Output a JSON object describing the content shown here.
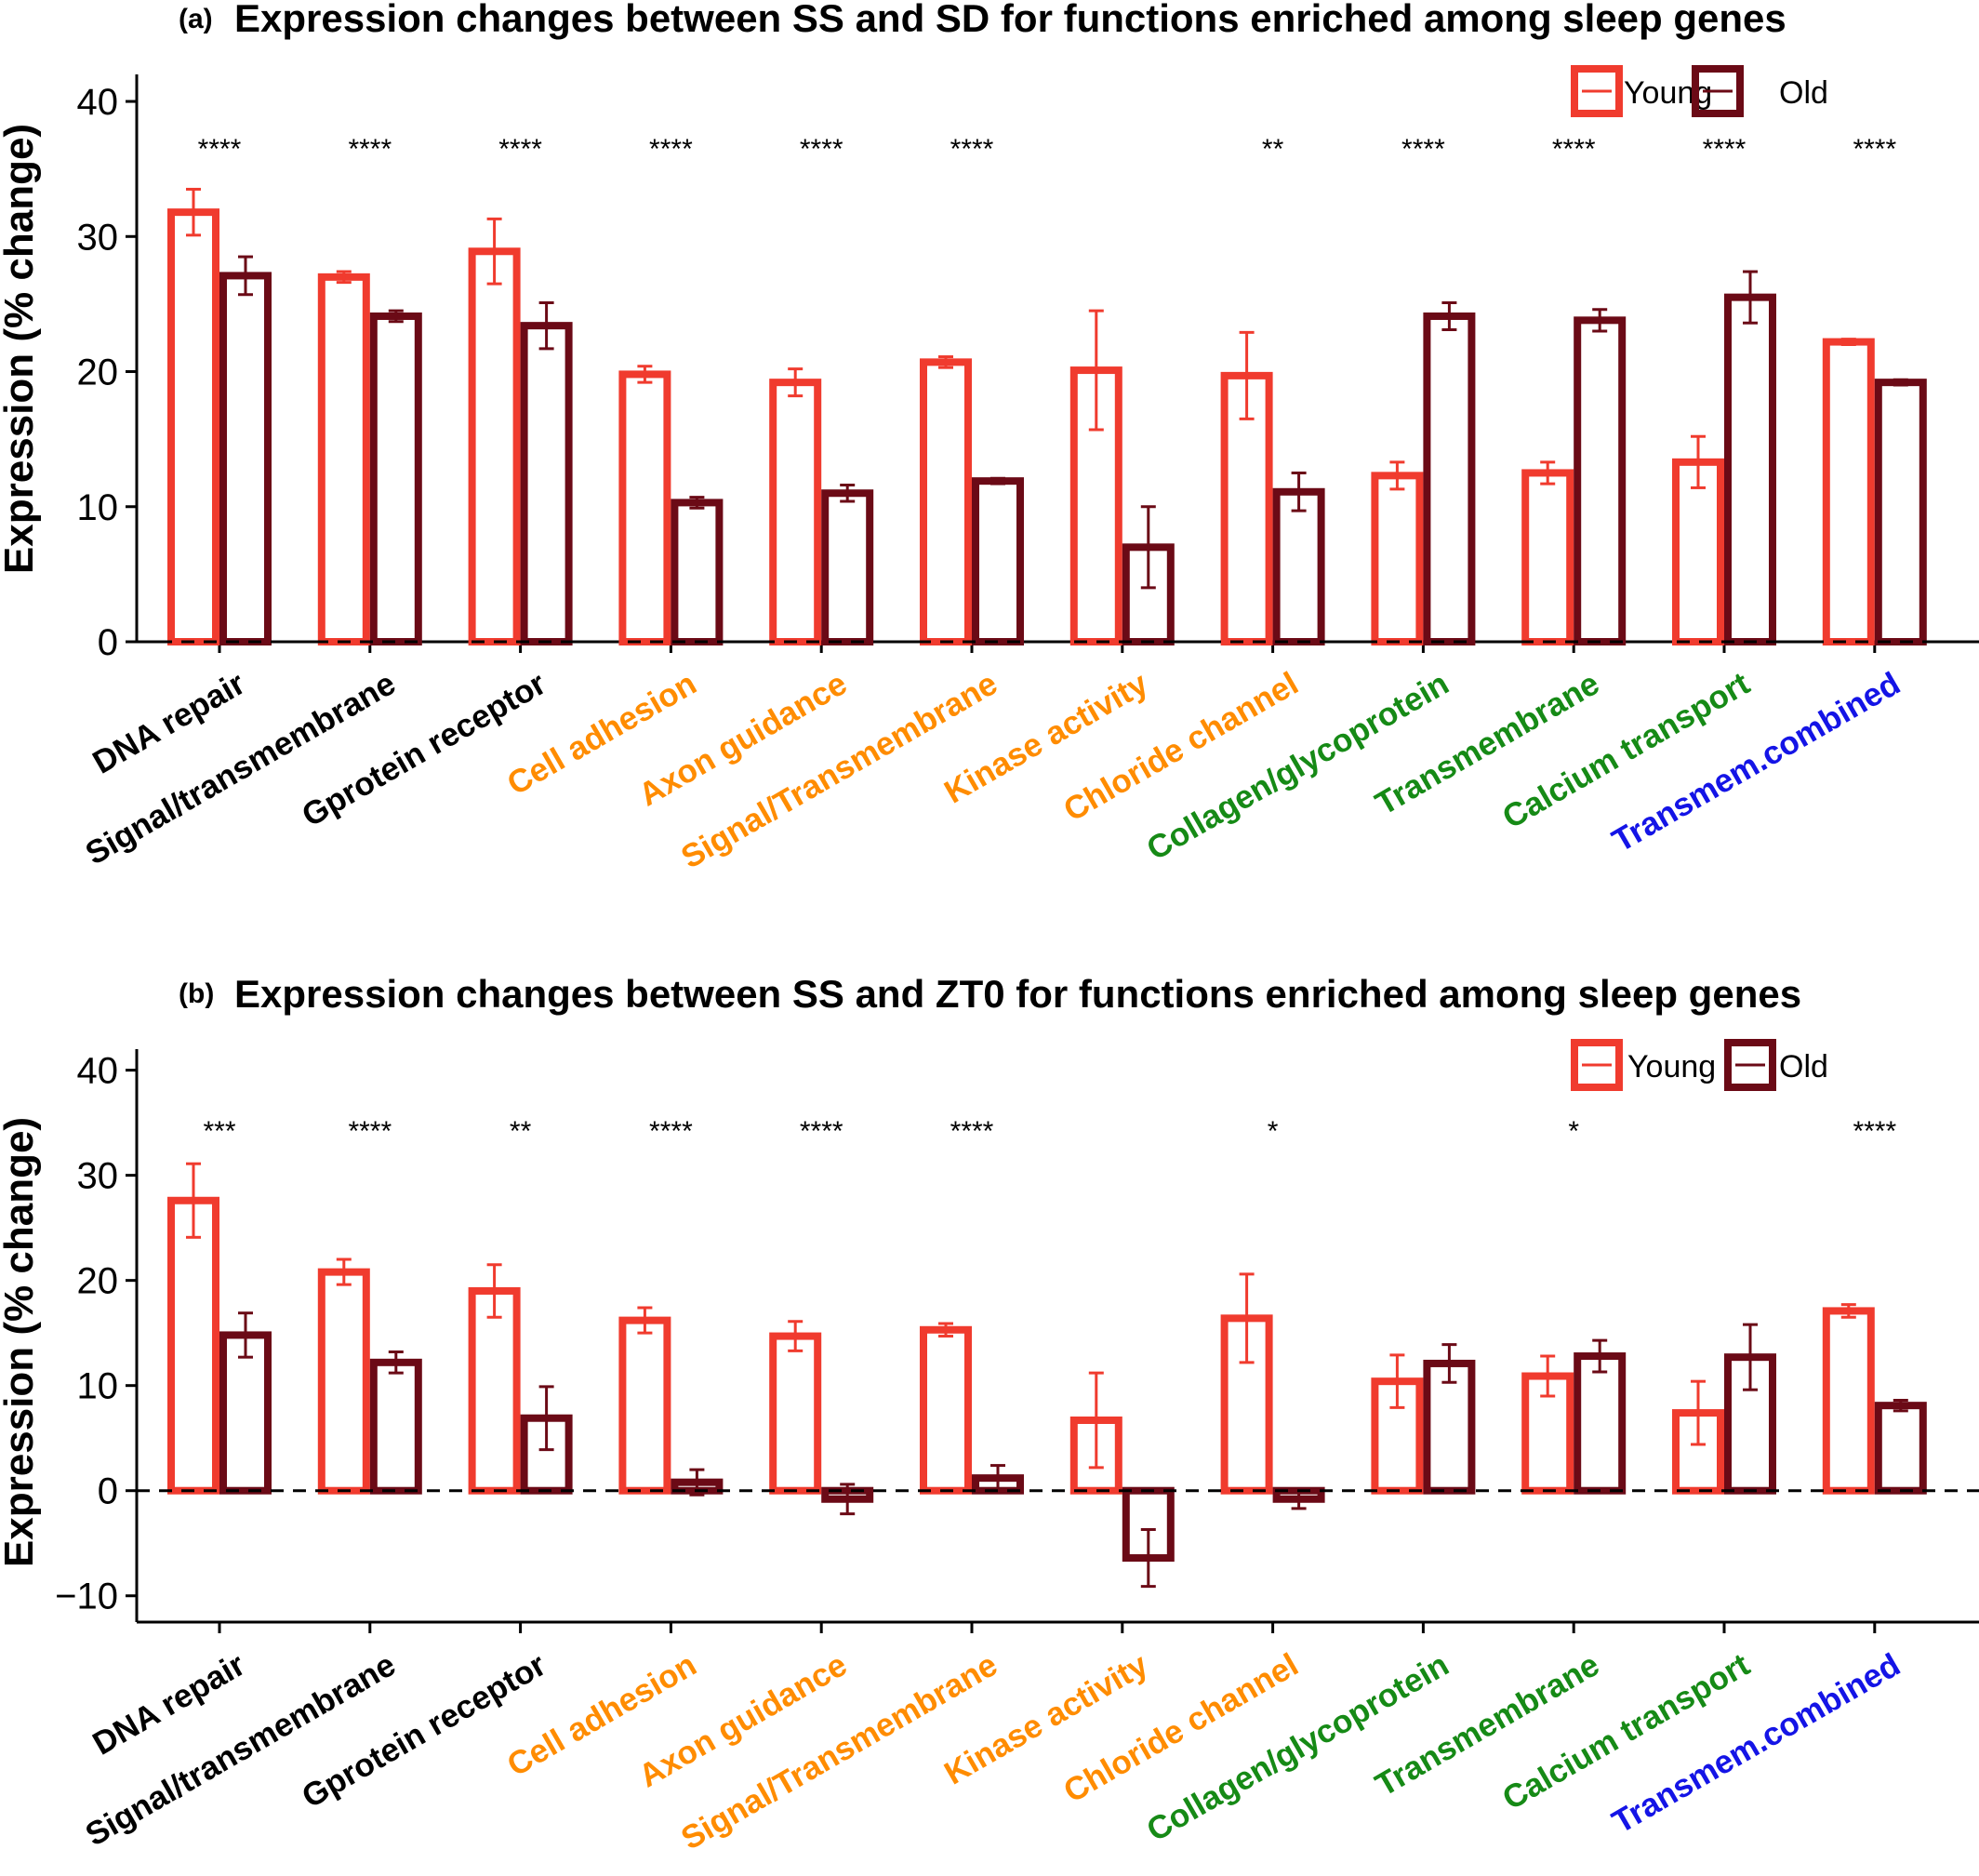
{
  "legend": [
    {
      "label": "Young",
      "color": "#f03b2e"
    },
    {
      "label": "Old",
      "color": "#6b0a16"
    }
  ],
  "category_colors": {
    "black": "#000000",
    "orange": "#ff8c00",
    "green": "#168a16",
    "blue": "#1414e6"
  },
  "chart_data": [
    {
      "type": "bar",
      "panel": "(a)",
      "title": "Expression changes between SS and SD for functions enriched among sleep genes",
      "ylabel": "Expression (% change)",
      "ylim": [
        0,
        42
      ],
      "yticks": [
        0,
        10,
        20,
        30,
        40
      ],
      "reference_line": 0,
      "categories": [
        "DNA repair",
        "Signal/transmembrane",
        "Gprotein receptor",
        "Cell adhesion",
        "Axon guidance",
        "Signal/Transmembrane",
        "Kinase activity",
        "Chloride channel",
        "Collagen/glycoprotein",
        "Transmembrane",
        "Calcium transport",
        "Transmem.combined"
      ],
      "category_color_keys": [
        "black",
        "black",
        "black",
        "orange",
        "orange",
        "orange",
        "orange",
        "orange",
        "green",
        "green",
        "green",
        "blue"
      ],
      "significance": [
        "****",
        "****",
        "****",
        "****",
        "****",
        "****",
        "",
        "**",
        "****",
        "****",
        "****",
        "****"
      ],
      "series": [
        {
          "name": "Young",
          "color": "#f03b2e",
          "values": [
            31.8,
            27.0,
            28.9,
            19.8,
            19.2,
            20.7,
            20.1,
            19.7,
            12.3,
            12.5,
            13.3,
            22.2
          ],
          "errors": [
            1.7,
            0.4,
            2.4,
            0.6,
            1.0,
            0.4,
            4.4,
            3.2,
            1.0,
            0.8,
            1.9,
            0.2
          ]
        },
        {
          "name": "Old",
          "color": "#6b0a16",
          "values": [
            27.1,
            24.1,
            23.4,
            10.3,
            11.0,
            11.9,
            7.0,
            11.1,
            24.1,
            23.8,
            25.5,
            19.2
          ],
          "errors": [
            1.4,
            0.4,
            1.7,
            0.4,
            0.6,
            0.2,
            3.0,
            1.4,
            1.0,
            0.8,
            1.9,
            0.2
          ]
        }
      ]
    },
    {
      "type": "bar",
      "panel": "(b)",
      "title": "Expression changes between SS and ZT0 for functions enriched among sleep genes",
      "ylabel": "Expression (% change)",
      "ylim": [
        -12.5,
        42
      ],
      "yticks": [
        -10,
        0,
        10,
        20,
        30,
        40
      ],
      "reference_line": 0,
      "categories": [
        "DNA repair",
        "Signal/transmembrane",
        "Gprotein receptor",
        "Cell adhesion",
        "Axon guidance",
        "Signal/Transmembrane",
        "Kinase activity",
        "Chloride channel",
        "Collagen/glycoprotein",
        "Transmembrane",
        "Calcium transport",
        "Transmem.combined"
      ],
      "category_color_keys": [
        "black",
        "black",
        "black",
        "orange",
        "orange",
        "orange",
        "orange",
        "orange",
        "green",
        "green",
        "green",
        "blue"
      ],
      "significance": [
        "***",
        "****",
        "**",
        "****",
        "****",
        "****",
        "",
        "*",
        "",
        "*",
        "",
        "****"
      ],
      "series": [
        {
          "name": "Young",
          "color": "#f03b2e",
          "values": [
            27.6,
            20.8,
            19.0,
            16.2,
            14.7,
            15.3,
            6.7,
            16.4,
            10.4,
            10.9,
            7.4,
            17.1
          ],
          "errors": [
            3.5,
            1.2,
            2.5,
            1.2,
            1.4,
            0.6,
            4.5,
            4.2,
            2.5,
            1.9,
            3.0,
            0.6
          ]
        },
        {
          "name": "Old",
          "color": "#6b0a16",
          "values": [
            14.8,
            12.2,
            6.9,
            0.8,
            -0.8,
            1.2,
            -6.4,
            -0.8,
            12.1,
            12.8,
            12.7,
            8.1
          ],
          "errors": [
            2.1,
            1.0,
            3.0,
            1.2,
            1.4,
            1.2,
            2.7,
            0.9,
            1.8,
            1.5,
            3.1,
            0.5
          ]
        }
      ]
    }
  ]
}
